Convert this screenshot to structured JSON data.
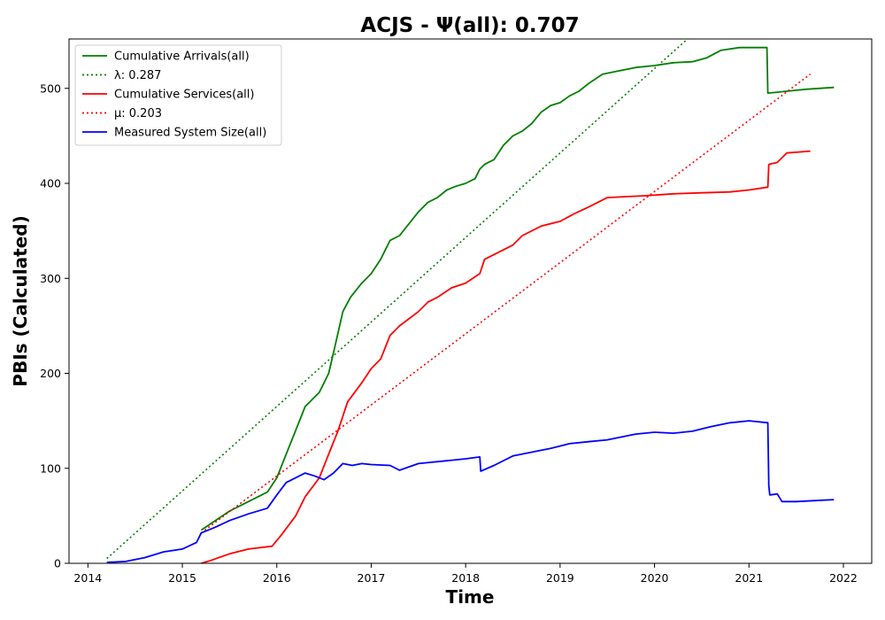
{
  "chart_data": {
    "type": "line",
    "title": "ACJS -  Ψ(all): 0.707",
    "xlabel": "Time",
    "ylabel": "PBIs (Calculated)",
    "xlim": [
      2013.8,
      2022.3
    ],
    "ylim": [
      0,
      552
    ],
    "xticks": [
      2014,
      2015,
      2016,
      2017,
      2018,
      2019,
      2020,
      2021,
      2022
    ],
    "yticks": [
      0,
      100,
      200,
      300,
      400,
      500
    ],
    "grid": false,
    "legend_position": "top-left",
    "series": [
      {
        "name": "Cumulative Arrivals(all)",
        "color": "#008000",
        "style": "solid",
        "x": [
          2015.2,
          2015.35,
          2015.5,
          2015.7,
          2015.9,
          2016.0,
          2016.1,
          2016.2,
          2016.3,
          2016.45,
          2016.55,
          2016.62,
          2016.7,
          2016.78,
          2016.9,
          2017.0,
          2017.1,
          2017.2,
          2017.3,
          2017.5,
          2017.6,
          2017.7,
          2017.8,
          2017.9,
          2018.0,
          2018.1,
          2018.15,
          2018.2,
          2018.3,
          2018.4,
          2018.5,
          2018.6,
          2018.7,
          2018.8,
          2018.9,
          2019.0,
          2019.1,
          2019.2,
          2019.3,
          2019.45,
          2019.6,
          2019.8,
          2020.0,
          2020.2,
          2020.4,
          2020.55,
          2020.7,
          2020.9,
          2021.1,
          2021.19,
          2021.2,
          2021.3,
          2021.6,
          2021.9
        ],
        "y": [
          35,
          45,
          55,
          65,
          75,
          90,
          115,
          140,
          165,
          180,
          200,
          230,
          265,
          280,
          295,
          305,
          320,
          340,
          345,
          370,
          380,
          385,
          393,
          397,
          400,
          405,
          415,
          420,
          425,
          440,
          450,
          455,
          463,
          475,
          482,
          485,
          492,
          497,
          505,
          515,
          518,
          522,
          524,
          527,
          528,
          532,
          540,
          543,
          543,
          543,
          495,
          496,
          499,
          501
        ]
      },
      {
        "name": "λ: 0.287",
        "color": "#008000",
        "style": "dotted",
        "x": [
          2014.2,
          2020.35
        ],
        "y": [
          5,
          552
        ]
      },
      {
        "name": "Cumulative Services(all)",
        "color": "#ff0000",
        "style": "solid",
        "x": [
          2015.2,
          2015.3,
          2015.5,
          2015.7,
          2015.95,
          2016.05,
          2016.2,
          2016.3,
          2016.45,
          2016.55,
          2016.65,
          2016.75,
          2016.9,
          2017.0,
          2017.1,
          2017.2,
          2017.3,
          2017.5,
          2017.6,
          2017.7,
          2017.85,
          2018.0,
          2018.15,
          2018.2,
          2018.3,
          2018.5,
          2018.6,
          2018.8,
          2019.0,
          2019.15,
          2019.3,
          2019.5,
          2019.7,
          2019.9,
          2020.2,
          2020.5,
          2020.8,
          2021.0,
          2021.2,
          2021.21,
          2021.3,
          2021.4,
          2021.65
        ],
        "y": [
          0,
          3,
          10,
          15,
          18,
          30,
          50,
          70,
          90,
          115,
          140,
          170,
          190,
          205,
          215,
          240,
          250,
          265,
          275,
          280,
          290,
          295,
          305,
          320,
          325,
          335,
          345,
          355,
          360,
          368,
          375,
          385,
          386,
          387,
          389,
          390,
          391,
          393,
          396,
          420,
          422,
          432,
          434
        ]
      },
      {
        "name": "μ: 0.203",
        "color": "#ff0000",
        "style": "dotted",
        "x": [
          2015.2,
          2021.65
        ],
        "y": [
          32,
          515
        ]
      },
      {
        "name": "Measured System Size(all)",
        "color": "#0000ff",
        "style": "solid",
        "x": [
          2014.2,
          2014.4,
          2014.6,
          2014.8,
          2015.0,
          2015.15,
          2015.2,
          2015.35,
          2015.5,
          2015.7,
          2015.9,
          2016.0,
          2016.1,
          2016.3,
          2016.4,
          2016.5,
          2016.6,
          2016.7,
          2016.8,
          2016.9,
          2017.0,
          2017.2,
          2017.3,
          2017.5,
          2017.8,
          2018.0,
          2018.15,
          2018.16,
          2018.3,
          2018.5,
          2018.7,
          2018.9,
          2019.1,
          2019.3,
          2019.5,
          2019.8,
          2020.0,
          2020.2,
          2020.4,
          2020.6,
          2020.8,
          2021.0,
          2021.2,
          2021.21,
          2021.22,
          2021.3,
          2021.35,
          2021.5,
          2021.7,
          2021.9
        ],
        "y": [
          1,
          2,
          6,
          12,
          15,
          22,
          32,
          38,
          45,
          52,
          58,
          72,
          85,
          95,
          92,
          88,
          95,
          105,
          103,
          105,
          104,
          103,
          98,
          105,
          108,
          110,
          112,
          97,
          103,
          113,
          117,
          121,
          126,
          128,
          130,
          136,
          138,
          137,
          139,
          144,
          148,
          150,
          148,
          82,
          72,
          73,
          65,
          65,
          66,
          67
        ]
      }
    ]
  }
}
